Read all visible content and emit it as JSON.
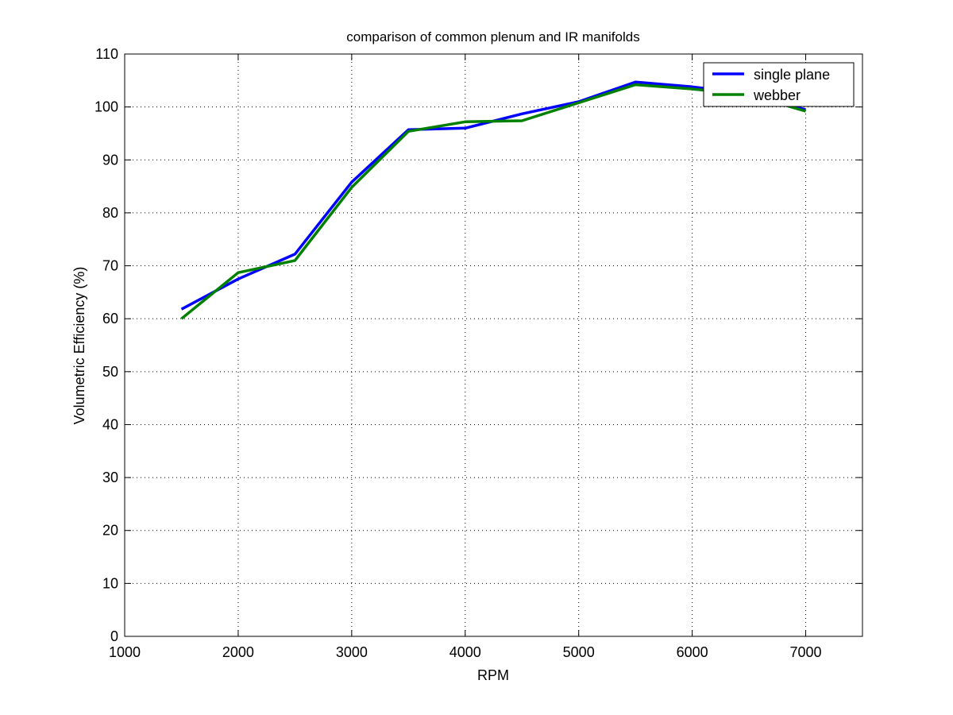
{
  "chart_data": {
    "type": "line",
    "title": "comparison of common plenum and IR manifolds",
    "xlabel": "RPM",
    "ylabel": "Volumetric Efficiency (%)",
    "xlim": [
      1000,
      7500
    ],
    "ylim": [
      0,
      110
    ],
    "xticks": [
      1000,
      2000,
      3000,
      4000,
      5000,
      6000,
      7000
    ],
    "yticks": [
      0,
      10,
      20,
      30,
      40,
      50,
      60,
      70,
      80,
      90,
      100,
      110
    ],
    "grid": true,
    "legend_position": "top-right",
    "x": [
      1500,
      2000,
      2500,
      3000,
      3500,
      4000,
      4500,
      5000,
      5500,
      6000,
      6500,
      7000
    ],
    "series": [
      {
        "name": "single plane",
        "color": "#0000ff",
        "values": [
          61.8,
          67.5,
          72.2,
          85.8,
          95.7,
          96.0,
          98.7,
          101.0,
          104.7,
          103.8,
          102.5,
          99.5
        ]
      },
      {
        "name": "webber",
        "color": "#008000",
        "values": [
          60.0,
          68.7,
          71.0,
          84.8,
          95.4,
          97.2,
          97.4,
          100.8,
          104.2,
          103.4,
          102.3,
          99.2
        ]
      }
    ]
  }
}
